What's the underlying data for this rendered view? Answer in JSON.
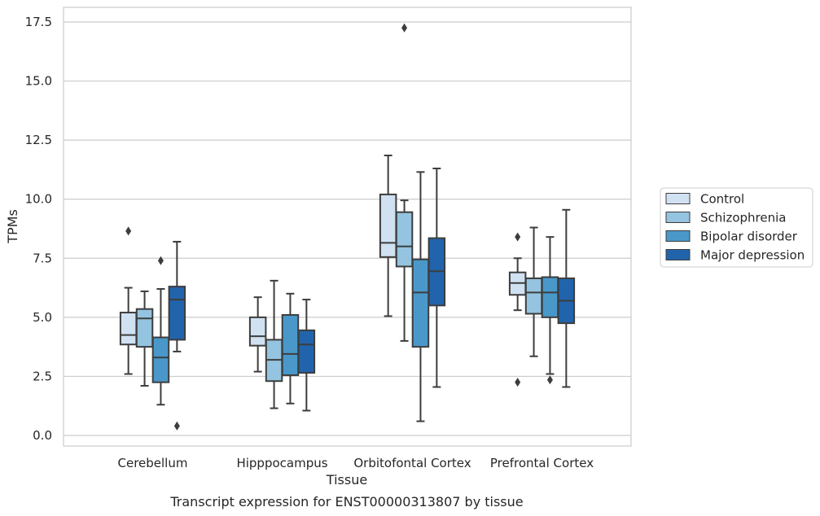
{
  "caption": "Transcript expression for ENST00000313807 by tissue",
  "chart_data": {
    "type": "box",
    "xlabel": "Tissue",
    "ylabel": "TPMs",
    "ylim": [
      -0.4,
      18.1
    ],
    "yticks": [
      "0.0",
      "2.5",
      "5.0",
      "7.5",
      "10.0",
      "12.5",
      "15.0",
      "17.5"
    ],
    "ytick_values": [
      0,
      2.5,
      5,
      7.5,
      10,
      12.5,
      15,
      17.5
    ],
    "grid": "horizontal",
    "legend_position": "right",
    "categories": [
      "Cerebellum",
      "Hipppocampus",
      "Orbitofontal Cortex",
      "Prefrontal Cortex"
    ],
    "series": [
      {
        "name": "Control",
        "color": "#d0e1f2",
        "boxes": [
          {
            "whislo": 2.6,
            "q1": 3.85,
            "med": 4.25,
            "q3": 5.2,
            "whishi": 6.25,
            "fliers": [
              8.65
            ]
          },
          {
            "whislo": 2.7,
            "q1": 3.8,
            "med": 4.2,
            "q3": 5.0,
            "whishi": 5.85,
            "fliers": []
          },
          {
            "whislo": 5.05,
            "q1": 7.55,
            "med": 8.15,
            "q3": 10.2,
            "whishi": 11.85,
            "fliers": []
          },
          {
            "whislo": 5.3,
            "q1": 5.95,
            "med": 6.45,
            "q3": 6.9,
            "whishi": 7.5,
            "fliers": [
              8.4,
              2.25
            ]
          }
        ]
      },
      {
        "name": "Schizophrenia",
        "color": "#94c4df",
        "boxes": [
          {
            "whislo": 2.1,
            "q1": 3.75,
            "med": 4.95,
            "q3": 5.35,
            "whishi": 6.1,
            "fliers": []
          },
          {
            "whislo": 1.15,
            "q1": 2.3,
            "med": 3.2,
            "q3": 4.05,
            "whishi": 6.55,
            "fliers": []
          },
          {
            "whislo": 4.0,
            "q1": 7.15,
            "med": 8.0,
            "q3": 9.45,
            "whishi": 9.95,
            "fliers": [
              17.25
            ]
          },
          {
            "whislo": 3.35,
            "q1": 5.15,
            "med": 6.05,
            "q3": 6.65,
            "whishi": 8.8,
            "fliers": []
          }
        ]
      },
      {
        "name": "Bipolar disorder",
        "color": "#4a98c9",
        "boxes": [
          {
            "whislo": 1.3,
            "q1": 2.25,
            "med": 3.3,
            "q3": 4.15,
            "whishi": 6.2,
            "fliers": [
              7.4
            ]
          },
          {
            "whislo": 1.35,
            "q1": 2.55,
            "med": 3.45,
            "q3": 5.1,
            "whishi": 6.0,
            "fliers": []
          },
          {
            "whislo": 0.6,
            "q1": 3.75,
            "med": 6.05,
            "q3": 7.45,
            "whishi": 11.15,
            "fliers": []
          },
          {
            "whislo": 2.6,
            "q1": 5.0,
            "med": 6.05,
            "q3": 6.7,
            "whishi": 8.4,
            "fliers": [
              2.35
            ]
          }
        ]
      },
      {
        "name": "Major depression",
        "color": "#2164ab",
        "boxes": [
          {
            "whislo": 3.55,
            "q1": 4.05,
            "med": 5.75,
            "q3": 6.3,
            "whishi": 8.2,
            "fliers": [
              0.4
            ]
          },
          {
            "whislo": 1.05,
            "q1": 2.65,
            "med": 3.85,
            "q3": 4.45,
            "whishi": 5.75,
            "fliers": []
          },
          {
            "whislo": 2.05,
            "q1": 5.5,
            "med": 6.95,
            "q3": 8.35,
            "whishi": 11.3,
            "fliers": []
          },
          {
            "whislo": 2.05,
            "q1": 4.75,
            "med": 5.7,
            "q3": 6.65,
            "whishi": 9.55,
            "fliers": []
          }
        ]
      }
    ]
  }
}
